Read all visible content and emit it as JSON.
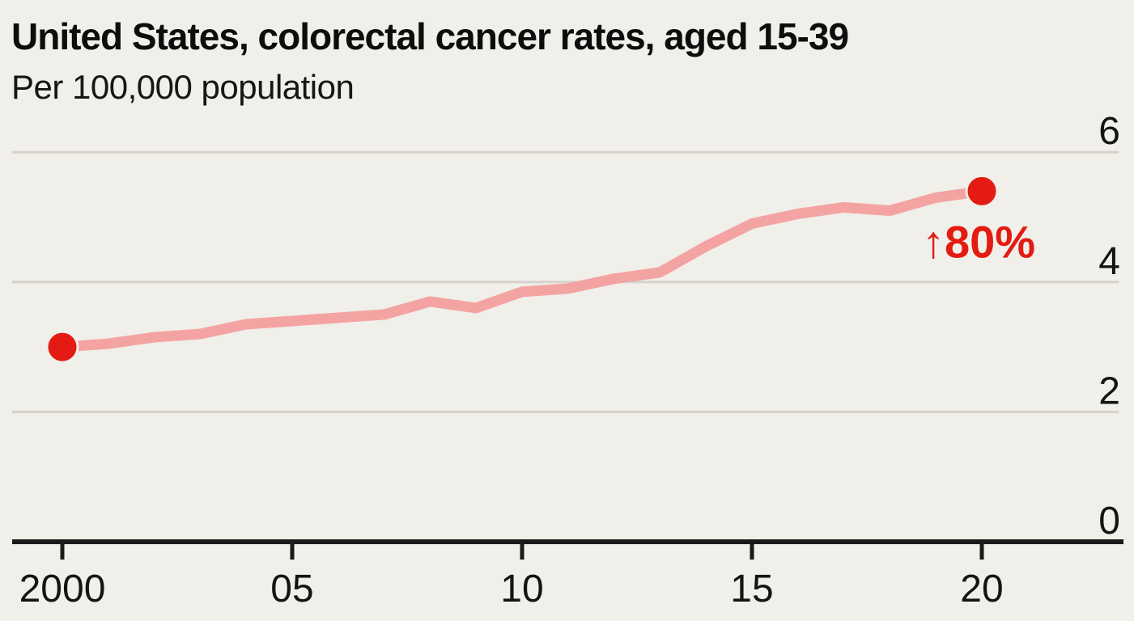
{
  "header": {
    "title": "United States, colorectal cancer rates, aged 15-39",
    "subtitle": "Per 100,000 population"
  },
  "chart_data": {
    "type": "line",
    "title": "United States, colorectal cancer rates, aged 15-39",
    "subtitle": "Per 100,000 population",
    "ylabel": "Per 100,000 population",
    "xlabel": "",
    "x": [
      2000,
      2001,
      2002,
      2003,
      2004,
      2005,
      2006,
      2007,
      2008,
      2009,
      2010,
      2011,
      2012,
      2013,
      2014,
      2015,
      2016,
      2017,
      2018,
      2019,
      2020
    ],
    "series": [
      {
        "name": "Colorectal cancer rate per 100,000, aged 15-39",
        "values": [
          3.0,
          3.05,
          3.15,
          3.2,
          3.35,
          3.4,
          3.45,
          3.5,
          3.7,
          3.6,
          3.85,
          3.9,
          4.05,
          4.15,
          4.55,
          4.9,
          5.05,
          5.15,
          5.1,
          5.3,
          5.4
        ]
      }
    ],
    "ylim": [
      0,
      6
    ],
    "yticks": [
      0,
      2,
      4,
      6
    ],
    "ytick_labels": [
      "0",
      "2",
      "4",
      "6"
    ],
    "ytick_side": "right",
    "xticks": [
      2000,
      2005,
      2010,
      2015,
      2020
    ],
    "xtick_labels": [
      "2000",
      "05",
      "10",
      "15",
      "20"
    ],
    "grid": "horizontal",
    "legend": "none",
    "annotation": {
      "label": "↑80%",
      "year": 2020,
      "value": 4.38
    },
    "markers": {
      "start_year": 2000,
      "end_year": 2020
    },
    "colors": {
      "background": "#f0efe9",
      "line": "#f4a3a3",
      "dot": "#e31b12",
      "annotation": "#e31b12",
      "grid": "#d5d3cc",
      "axis": "#1a1a1a",
      "tick_text": "#141414"
    }
  }
}
